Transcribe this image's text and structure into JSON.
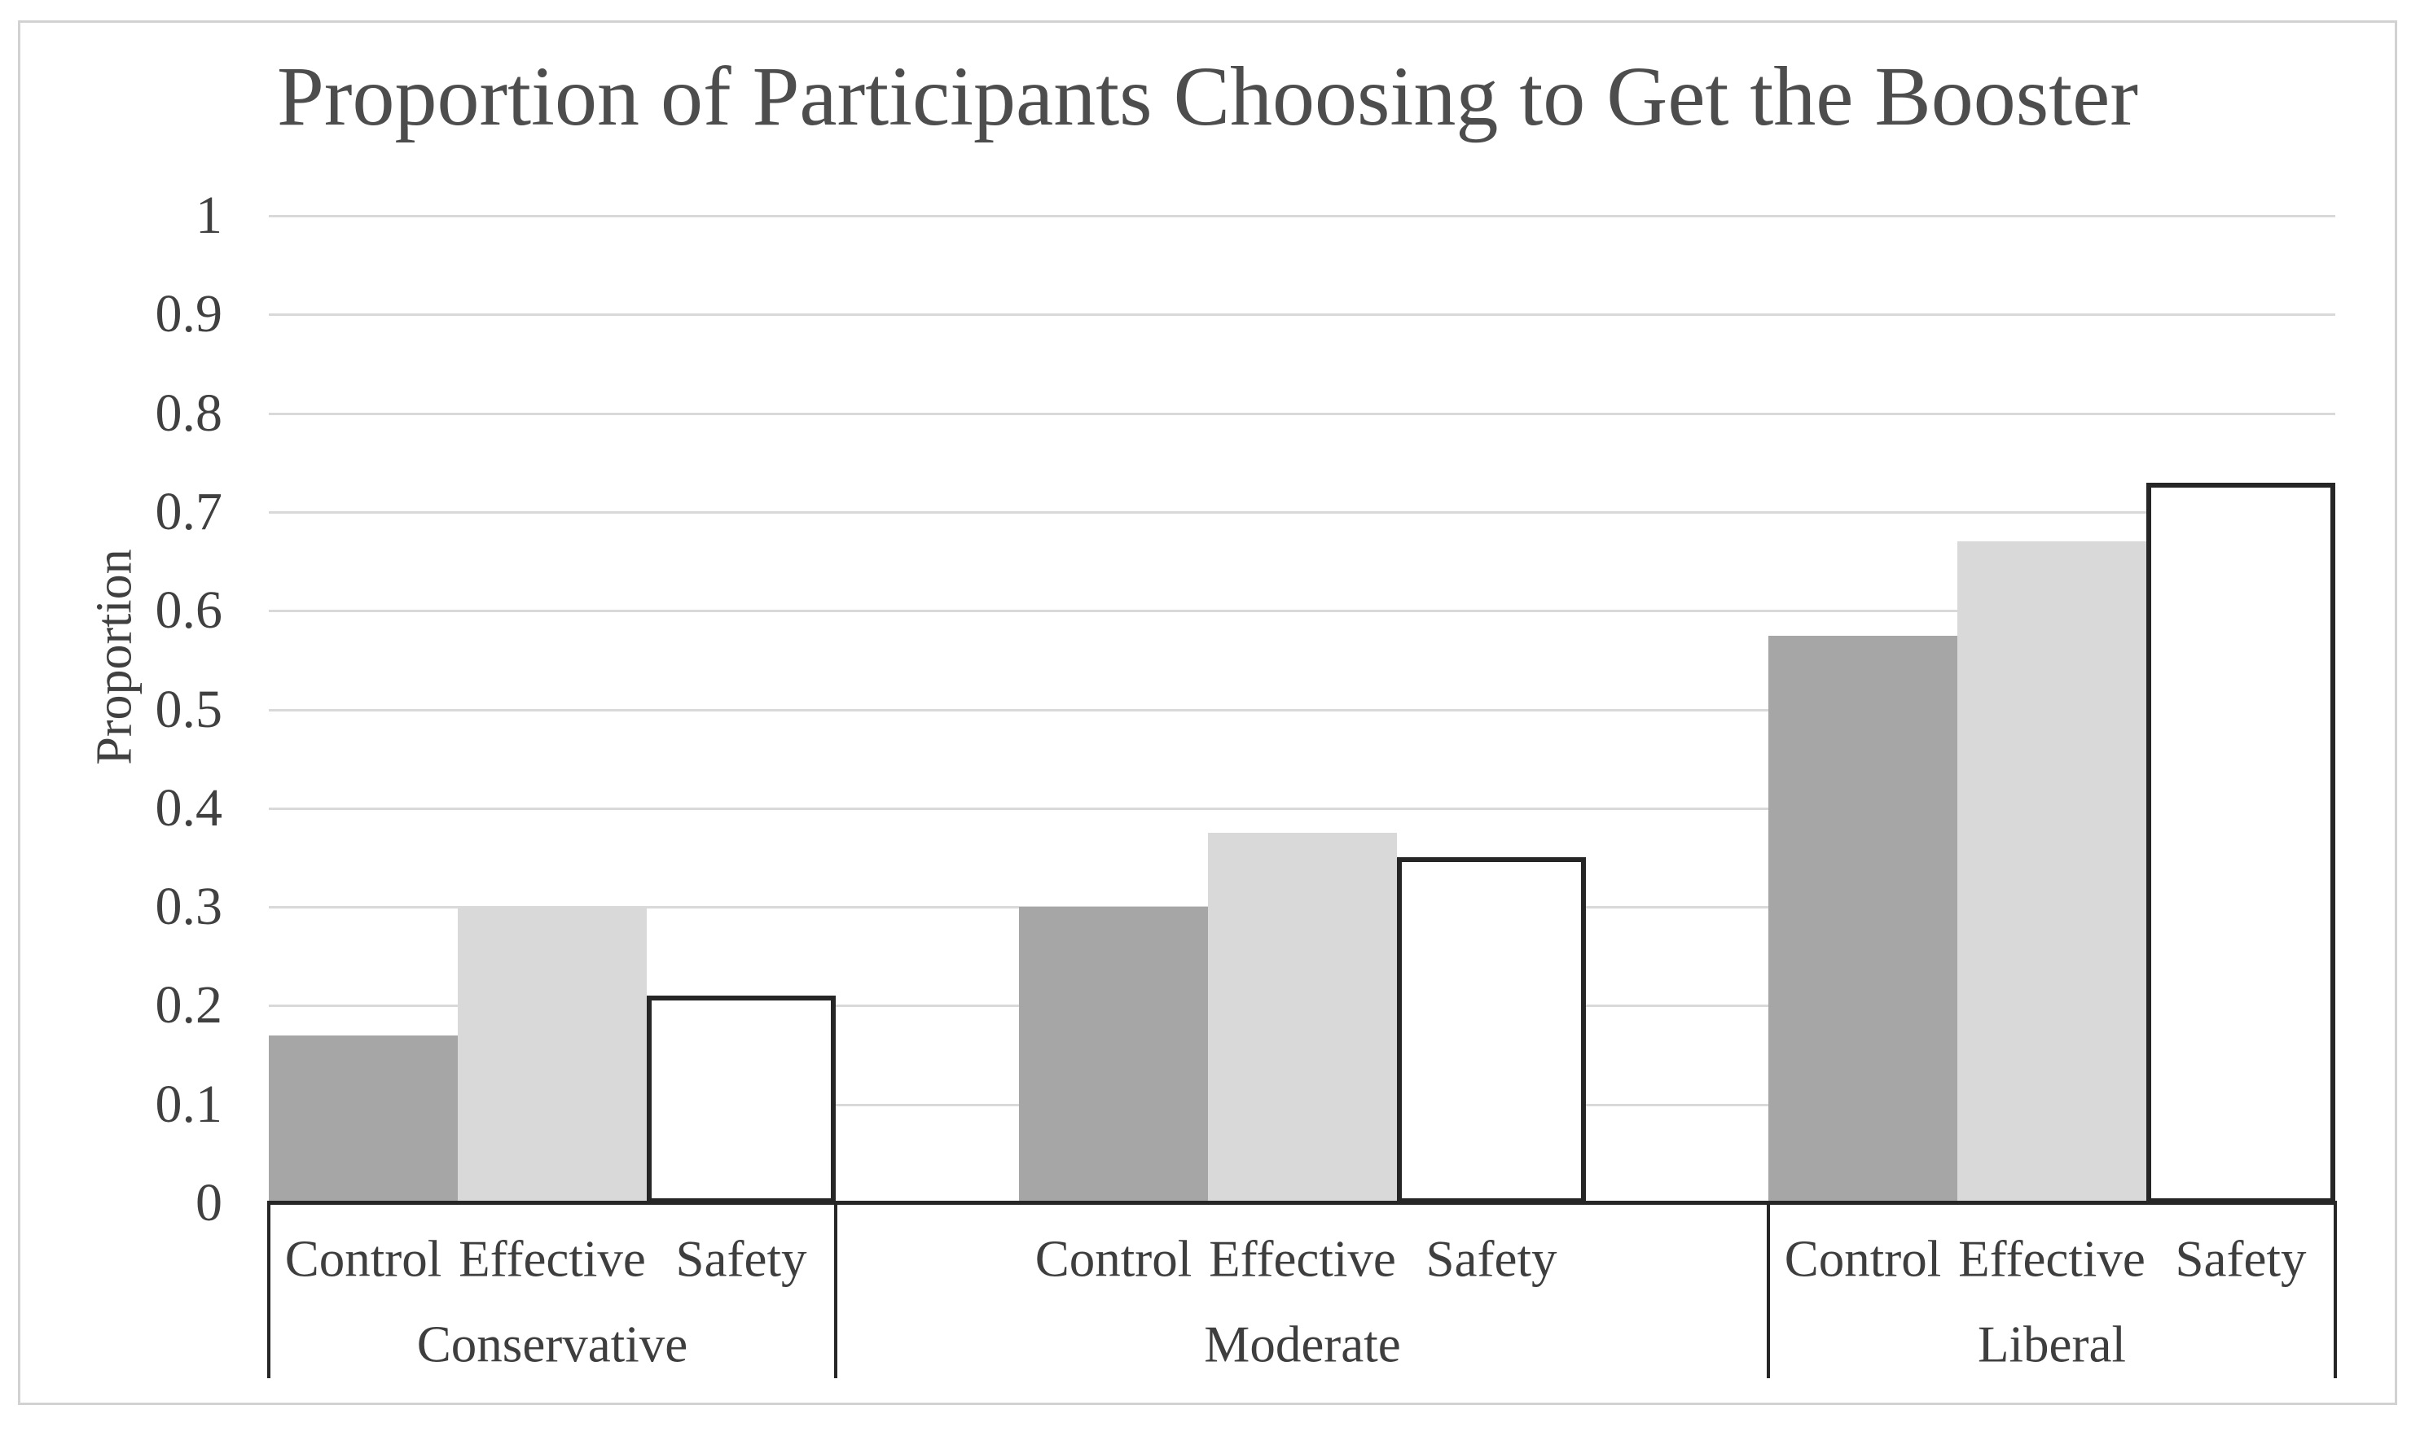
{
  "chart_data": {
    "type": "bar",
    "title": "Proportion of Participants Choosing to Get the Booster",
    "xlabel": "",
    "ylabel": "Proportion",
    "ylim": [
      0,
      1
    ],
    "ytick_step": 0.1,
    "yticks": [
      "0",
      "0.1",
      "0.2",
      "0.3",
      "0.4",
      "0.5",
      "0.6",
      "0.7",
      "0.8",
      "0.9",
      "1"
    ],
    "grid": true,
    "legend_position": "none",
    "conditions": [
      "Control",
      "Effective",
      "Safety"
    ],
    "groups": [
      {
        "label": "Conservative",
        "bars": [
          {
            "condition": "Control",
            "value": 0.17
          },
          {
            "condition": "Effective",
            "value": 0.3
          },
          {
            "condition": "Safety",
            "value": 0.21
          }
        ]
      },
      {
        "label": "Moderate",
        "bars": [
          {
            "condition": "Control",
            "value": 0.3
          },
          {
            "condition": "Effective",
            "value": 0.375
          },
          {
            "condition": "Safety",
            "value": 0.35
          }
        ]
      },
      {
        "label": "Liberal",
        "bars": [
          {
            "condition": "Control",
            "value": 0.575
          },
          {
            "condition": "Effective",
            "value": 0.67
          },
          {
            "condition": "Safety",
            "value": 0.73
          }
        ]
      }
    ],
    "series_styles": {
      "Control": {
        "fill": "#a6a6a6",
        "border": "none"
      },
      "Effective": {
        "fill": "#d9d9d9",
        "border": "none"
      },
      "Safety": {
        "fill": "#ffffff",
        "border": "#262626"
      }
    }
  },
  "colors": {
    "background": "#ffffff",
    "frame_border": "#d2d2d2",
    "gridline": "#d9d9d9",
    "axis": "#262626",
    "tick_text": "#404040",
    "title_text": "#4d4d4d"
  }
}
